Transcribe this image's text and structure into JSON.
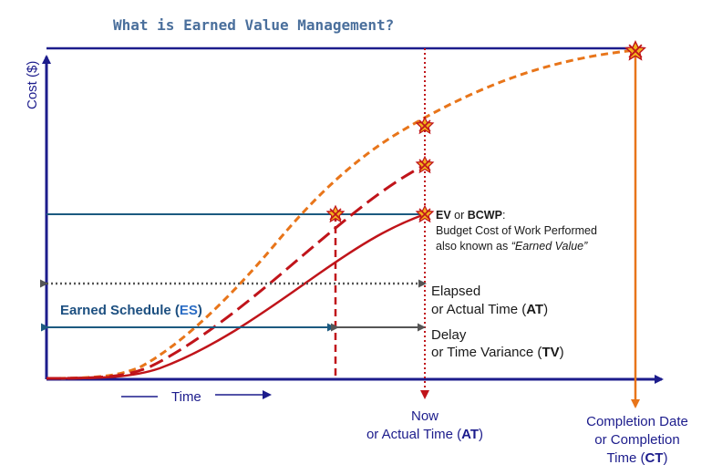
{
  "title": "What is Earned Value Management?",
  "axes": {
    "y_label": "Cost ($)",
    "x_label": "Time"
  },
  "now_label": {
    "line1": "Now",
    "line2_prefix": "or Actual Time (",
    "line2_bold": "AT",
    "line2_suffix": ")"
  },
  "completion_label": {
    "line1": "Completion Date",
    "line2": "or Completion",
    "line3_prefix": "Time (",
    "line3_bold": "CT",
    "line3_suffix": ")"
  },
  "ev_label": {
    "bold1": "EV",
    "mid": " or ",
    "bold2": "BCWP",
    "colon": ":",
    "line2": "Budget Cost of Work Performed",
    "line3_prefix": "also known as ",
    "line3_italic": "“Earned Value”"
  },
  "elapsed_label": {
    "line1": "Elapsed",
    "line2_prefix": "or Actual Time (",
    "line2_bold": "AT",
    "line2_suffix": ")"
  },
  "delay_label": {
    "line1": "Delay",
    "line2_prefix": "or Time Variance (",
    "line2_bold": "TV",
    "line2_suffix": ")"
  },
  "earned_schedule_label": {
    "prefix": "Earned Schedule (",
    "bold": "ES",
    "suffix": ")"
  },
  "colors": {
    "axis": "#1c1c8c",
    "orange": "#e8751a",
    "red": "#c0141a",
    "teal": "#1c5a80",
    "gray": "#555555"
  }
}
